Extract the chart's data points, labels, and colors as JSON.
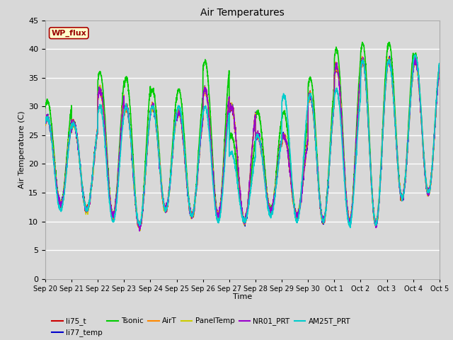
{
  "title": "Air Temperatures",
  "xlabel": "Time",
  "ylabel": "Air Temperature (C)",
  "ylim": [
    0,
    45
  ],
  "yticks": [
    0,
    5,
    10,
    15,
    20,
    25,
    30,
    35,
    40,
    45
  ],
  "background_color": "#d8d8d8",
  "plot_bg_color": "#d8d8d8",
  "grid_color": "#ffffff",
  "annotation_text": "WP_flux",
  "annotation_bg": "#ffffcc",
  "annotation_border": "#aa0000",
  "series": [
    {
      "name": "li75_t",
      "color": "#cc0000",
      "lw": 1.0
    },
    {
      "name": "li77_temp",
      "color": "#0000cc",
      "lw": 1.0
    },
    {
      "name": "Tsonic",
      "color": "#00cc00",
      "lw": 1.2
    },
    {
      "name": "AirT",
      "color": "#ff8800",
      "lw": 1.0
    },
    {
      "name": "PanelTemp",
      "color": "#cccc00",
      "lw": 1.0
    },
    {
      "name": "NR01_PRT",
      "color": "#9900cc",
      "lw": 1.0
    },
    {
      "name": "AM25T_PRT",
      "color": "#00cccc",
      "lw": 1.2
    }
  ],
  "date_labels": [
    "Sep 20",
    "Sep 21",
    "Sep 22",
    "Sep 23",
    "Sep 24",
    "Sep 25",
    "Sep 26",
    "Sep 27",
    "Sep 28",
    "Sep 29",
    "Sep 30",
    "Oct 1",
    "Oct 2",
    "Oct 3",
    "Oct 4",
    "Oct 5"
  ],
  "base_peaks": [
    28,
    27,
    33,
    30,
    30,
    29,
    33,
    30,
    25,
    25,
    32,
    37,
    38,
    38,
    38,
    38
  ],
  "tsonic_peaks": [
    31,
    27,
    36,
    35,
    33,
    33,
    38,
    25,
    29,
    29,
    35,
    40,
    41,
    41,
    39,
    39
  ],
  "am25t_peaks": [
    28,
    27,
    30,
    30,
    30,
    30,
    30,
    22,
    25,
    32,
    32,
    33,
    38,
    38,
    39,
    39
  ],
  "base_troughs": [
    13,
    12,
    11,
    9,
    12,
    11,
    11,
    10,
    12,
    11,
    10,
    10,
    9.5,
    14,
    15,
    15
  ],
  "am25t_troughs": [
    12,
    12,
    10,
    9.5,
    12,
    11,
    10,
    10,
    11,
    10,
    10,
    9.5,
    9.5,
    14,
    15,
    15
  ]
}
